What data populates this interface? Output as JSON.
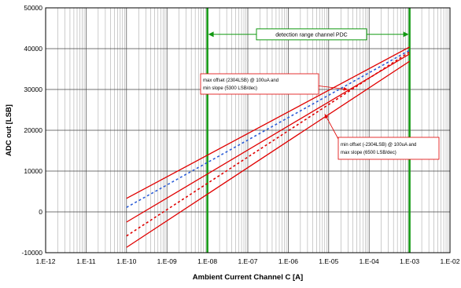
{
  "chart_data": {
    "type": "line",
    "title": "",
    "xlabel": "Ambient Current Channel C [A]",
    "ylabel": "ADC out [LSB]",
    "x_scale": "log",
    "xlim": [
      1e-12,
      0.01
    ],
    "ylim": [
      -10000,
      50000
    ],
    "x_ticks": [
      1e-12,
      1e-11,
      1e-10,
      1e-09,
      1e-08,
      1e-07,
      1e-06,
      1e-05,
      0.0001,
      0.001,
      0.01
    ],
    "x_tick_labels": [
      "1.E-12",
      "1.E-11",
      "1.E-10",
      "1.E-09",
      "1.E-08",
      "1.E-07",
      "1.E-06",
      "1.E-05",
      "1.E-04",
      "1.E-03",
      "1.E-02"
    ],
    "y_ticks": [
      -10000,
      0,
      10000,
      20000,
      30000,
      40000,
      50000
    ],
    "y_tick_labels": [
      "-10000",
      "0",
      "10000",
      "20000",
      "30000",
      "40000",
      "50000"
    ],
    "grid": true,
    "series": [
      {
        "style": "solid",
        "color": "#e00000",
        "x": [
          1e-10,
          0.001
        ],
        "y": [
          3300,
          40400
        ]
      },
      {
        "style": "solid",
        "color": "#e00000",
        "x": [
          1e-10,
          0.001
        ],
        "y": [
          -2500,
          38700
        ]
      },
      {
        "style": "solid",
        "color": "#e00000",
        "x": [
          1e-10,
          0.001
        ],
        "y": [
          -8700,
          36900
        ]
      },
      {
        "style": "dashed",
        "color": "#e00000",
        "x": [
          1e-10,
          0.001
        ],
        "y": [
          -5900,
          39200
        ]
      },
      {
        "style": "dashed",
        "color": "#2a5cd8",
        "x": [
          1e-10,
          0.001
        ],
        "y": [
          1100,
          39600
        ]
      }
    ],
    "vertical_lines": [
      {
        "x": 1e-08,
        "color": "#119911"
      },
      {
        "x": 0.001,
        "color": "#119911"
      }
    ],
    "range_annotation": {
      "label": "detection range channel PDC",
      "from": 1e-08,
      "to": 0.001,
      "y": 43500
    },
    "annotations": [
      {
        "line1": "max offset (2304LSB) @ 100uA and",
        "line2": "min slope (5300 LSB/dec)",
        "arrow_to_x": 3e-05,
        "arrow_to_y": 30000
      },
      {
        "line1": "min offset (-2304LSB) @ 100uA and",
        "line2": "max slope (6500 LSB/dec)",
        "arrow_to_x": 8e-06,
        "arrow_to_y": 24000
      }
    ]
  }
}
